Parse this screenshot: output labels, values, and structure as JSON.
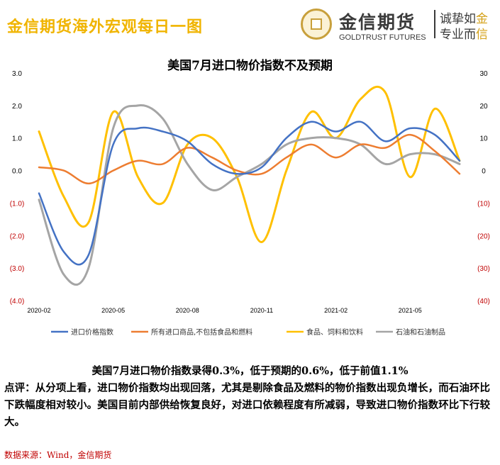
{
  "header": {
    "title": "金信期货海外宏观每日一图",
    "brand_cn": "金信期货",
    "brand_en": "GOLDTRUST FUTURES",
    "slogan_line1_a": "诚挚如",
    "slogan_line1_b": "金",
    "slogan_line2_a": "专业而",
    "slogan_line2_b": "信"
  },
  "colors": {
    "title_gold": "#f0b400",
    "right_axis_red": "#c00000"
  },
  "chart_data": {
    "type": "line",
    "title": "美国7月进口物价指数不及预期",
    "x": [
      "2020-02",
      "2020-03",
      "2020-04",
      "2020-05",
      "2020-06",
      "2020-07",
      "2020-08",
      "2020-09",
      "2020-10",
      "2020-11",
      "2020-12",
      "2021-01",
      "2021-02",
      "2021-03",
      "2021-04",
      "2021-05",
      "2021-06",
      "2021-07"
    ],
    "x_tick_labels": [
      "2020-02",
      "2020-05",
      "2020-08",
      "2020-11",
      "2021-02",
      "2021-05"
    ],
    "left_axis": {
      "ylim": [
        -4.0,
        3.0
      ],
      "tick_labels": [
        "3.0",
        "2.0",
        "1.0",
        "0.0",
        "(1.0)",
        "(2.0)",
        "(3.0)",
        "(4.0)"
      ]
    },
    "right_axis": {
      "ylim": [
        -40,
        30
      ],
      "tick_labels": [
        "30",
        "20",
        "10",
        "0",
        "(10)",
        "(20)",
        "(30)",
        "(40)"
      ]
    },
    "grid": false,
    "legend_position": "bottom",
    "series": [
      {
        "name": "进口价格指数",
        "axis": "left",
        "color": "#4472c4",
        "values": [
          -0.7,
          -2.5,
          -2.6,
          0.8,
          1.3,
          1.2,
          0.9,
          0.2,
          -0.1,
          0.1,
          1.0,
          1.5,
          1.2,
          1.5,
          0.9,
          1.3,
          1.1,
          0.3
        ]
      },
      {
        "name": "所有进口商品,不包括食品和燃料",
        "axis": "left",
        "color": "#ed7d31",
        "values": [
          0.1,
          0.0,
          -0.4,
          0.0,
          0.3,
          0.2,
          0.7,
          0.4,
          0.0,
          -0.1,
          0.4,
          0.8,
          0.4,
          0.8,
          0.7,
          1.1,
          0.6,
          -0.1
        ]
      },
      {
        "name": "食品、饲料和饮料",
        "axis": "right",
        "color": "#ffc000",
        "values": [
          12,
          -8,
          -16,
          18,
          -2,
          -10,
          8,
          10,
          -2,
          -22,
          0,
          18,
          10,
          22,
          24,
          -2,
          19,
          3
        ]
      },
      {
        "name": "石油和石油制品",
        "axis": "right",
        "color": "#a5a5a5",
        "values": [
          -9,
          -32,
          -30,
          13,
          20,
          16,
          2,
          -6,
          -2,
          2,
          8,
          10,
          10,
          8,
          2,
          5,
          5,
          2
        ]
      }
    ]
  },
  "summary": {
    "line1": "美国7月进口物价指数录得0.3%，低于预期的0.6%，低于前值1.1%",
    "comment": "点评：从分项上看，进口物价指数均出现回落，尤其是剔除食品及燃料的物价指数出现负增长，而石油环比下跌幅度相对较小。美国目前内部供给恢复良好，对进口依赖程度有所减弱，导致进口物价指数环比下行较大。"
  },
  "source": "数据来源：Wind，金信期货"
}
